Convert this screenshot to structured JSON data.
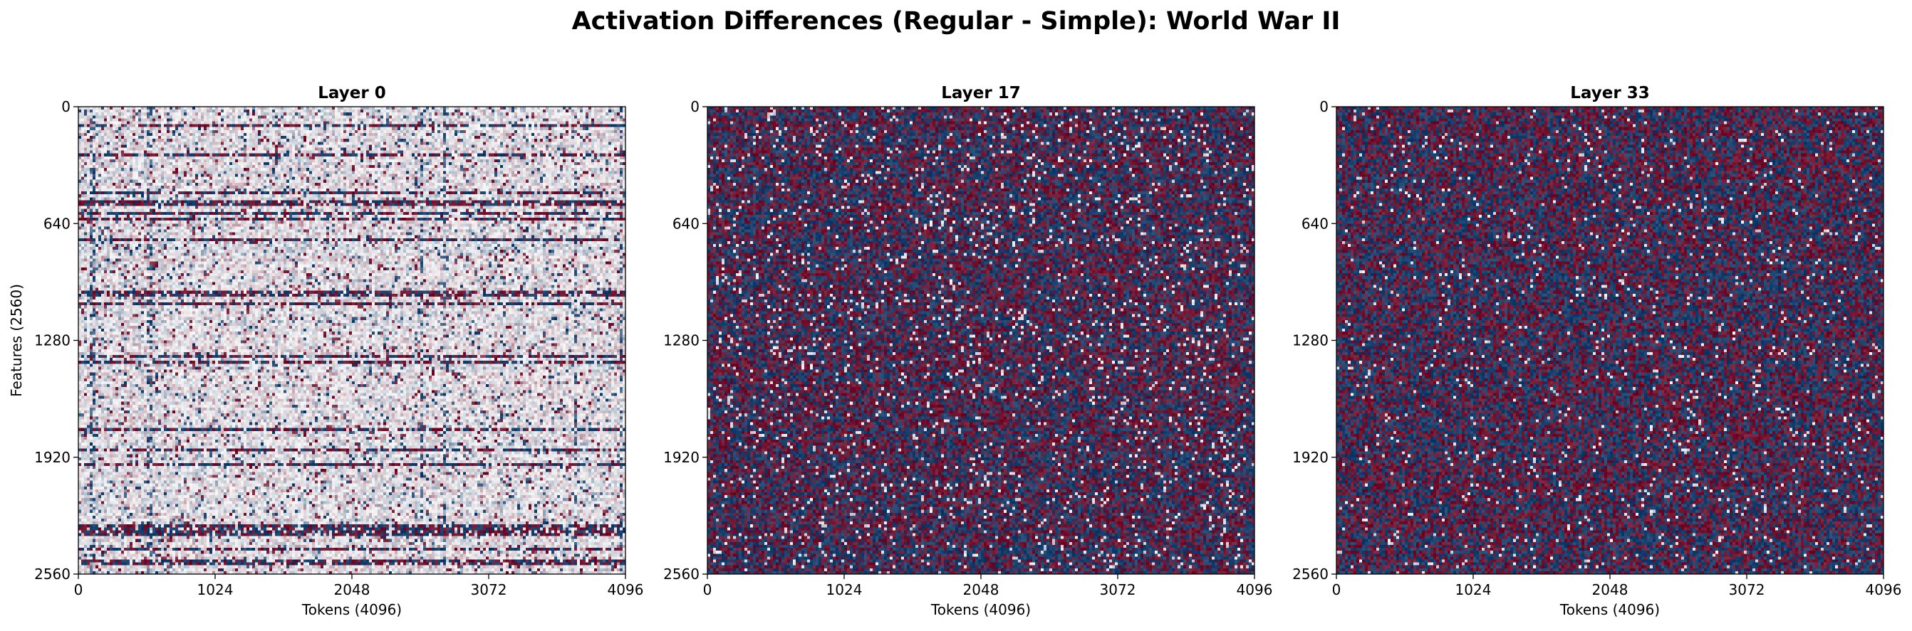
{
  "figure": {
    "title": "Activation Differences (Regular - Simple): World War II"
  },
  "chart_data": [
    {
      "type": "heatmap",
      "title": "Layer 0",
      "xlabel": "Tokens (4096)",
      "ylabel": "Features (2560)",
      "xlim": [
        0,
        4096
      ],
      "ylim": [
        2560,
        0
      ],
      "xticks": [
        "0",
        "1024",
        "2048",
        "3072",
        "4096"
      ],
      "yticks": [
        "0",
        "640",
        "1280",
        "1920",
        "2560"
      ],
      "colormap": "RdBu_r",
      "colors": {
        "high": "#67001f",
        "mid": "#f7f7f7",
        "low": "#053061"
      },
      "pattern": "light"
    },
    {
      "type": "heatmap",
      "title": "Layer 17",
      "xlabel": "Tokens (4096)",
      "ylabel": "",
      "xlim": [
        0,
        4096
      ],
      "ylim": [
        2560,
        0
      ],
      "xticks": [
        "0",
        "1024",
        "2048",
        "3072",
        "4096"
      ],
      "yticks": [
        "0",
        "640",
        "1280",
        "1920",
        "2560"
      ],
      "colormap": "RdBu_r",
      "colors": {
        "high": "#67001f",
        "mid": "#f7f7f7",
        "low": "#053061"
      },
      "pattern": "dark"
    },
    {
      "type": "heatmap",
      "title": "Layer 33",
      "xlabel": "Tokens (4096)",
      "ylabel": "",
      "xlim": [
        0,
        4096
      ],
      "ylim": [
        2560,
        0
      ],
      "xticks": [
        "0",
        "1024",
        "2048",
        "3072",
        "4096"
      ],
      "yticks": [
        "0",
        "640",
        "1280",
        "1920",
        "2560"
      ],
      "colormap": "RdBu_r",
      "colors": {
        "high": "#67001f",
        "mid": "#f7f7f7",
        "low": "#053061"
      },
      "pattern": "darkest"
    }
  ]
}
